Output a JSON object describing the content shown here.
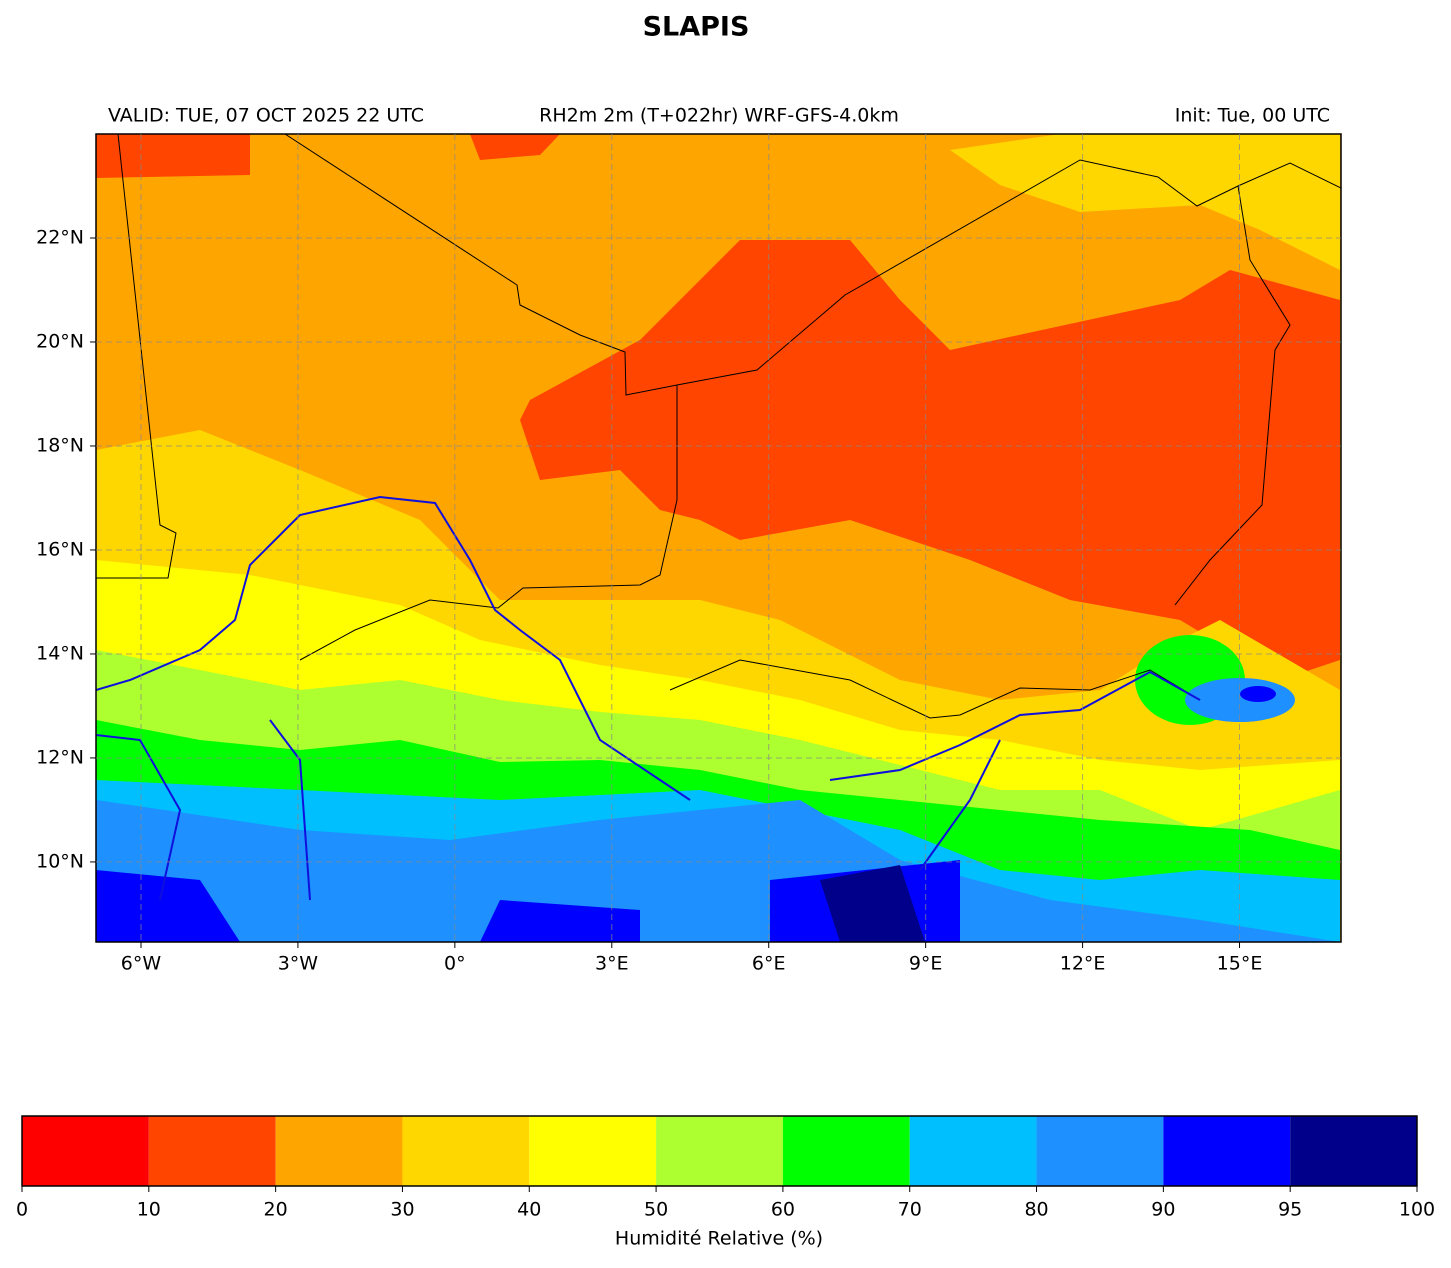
{
  "title": "SLAPIS",
  "map": {
    "valid": "VALID: TUE, 07 OCT 2025 22 UTC",
    "product": "RH2m 2m (T+022hr) WRF-GFS-4.0km",
    "init": "Init: Tue, 00 UTC",
    "xlim": [
      -6.86,
      16.94
    ],
    "ylim": [
      8.46,
      24.0
    ],
    "xticks": [
      {
        "value": -6,
        "label": "6°W"
      },
      {
        "value": -3,
        "label": "3°W"
      },
      {
        "value": 0,
        "label": "0°"
      },
      {
        "value": 3,
        "label": "3°E"
      },
      {
        "value": 6,
        "label": "6°E"
      },
      {
        "value": 9,
        "label": "9°E"
      },
      {
        "value": 12,
        "label": "12°E"
      },
      {
        "value": 15,
        "label": "15°E"
      }
    ],
    "yticks": [
      {
        "value": 10,
        "label": "10°N"
      },
      {
        "value": 12,
        "label": "12°N"
      },
      {
        "value": 14,
        "label": "14°N"
      },
      {
        "value": 16,
        "label": "16°N"
      },
      {
        "value": 18,
        "label": "18°N"
      },
      {
        "value": 20,
        "label": "20°N"
      },
      {
        "value": 22,
        "label": "22°N"
      }
    ],
    "grid": true
  },
  "colorbar": {
    "label": "Humidité Relative (%)",
    "bounds": [
      0,
      10,
      20,
      30,
      40,
      50,
      60,
      70,
      80,
      90,
      95,
      100
    ],
    "colors": [
      "#ff0000",
      "#ff4500",
      "#ffa500",
      "#ffd700",
      "#ffff00",
      "#adff2f",
      "#00ff00",
      "#00bfff",
      "#1e90ff",
      "#0000ff",
      "#00008b"
    ]
  }
}
